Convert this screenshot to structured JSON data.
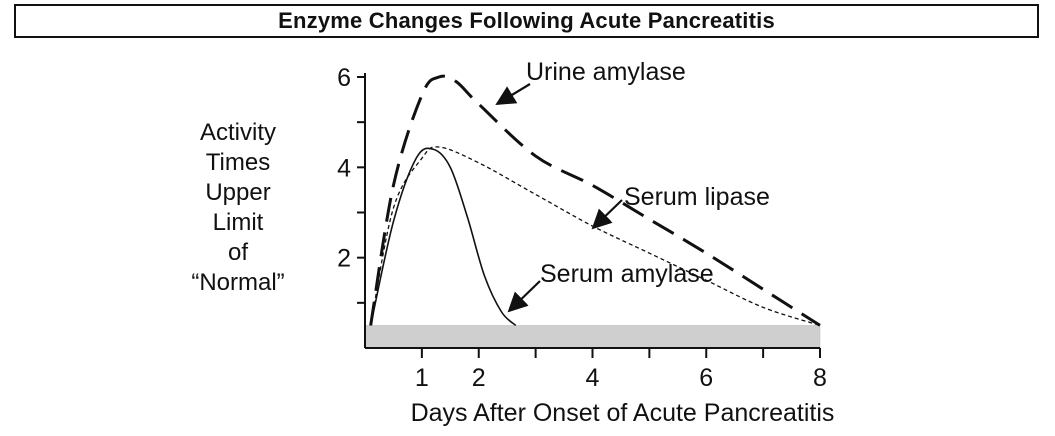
{
  "chart_data": {
    "type": "line",
    "title": "Enzyme Changes Following Acute Pancreatitis",
    "xlabel": "Days After Onset of Acute Pancreatitis",
    "ylabel": "Activity\nTimes\nUpper\nLimit\nof\n“Normal”",
    "xlim": [
      0,
      8
    ],
    "ylim": [
      0,
      6
    ],
    "x_ticks": [
      1,
      2,
      4,
      6,
      8
    ],
    "y_ticks": [
      2,
      4,
      6
    ],
    "normal_band": [
      0,
      0.5
    ],
    "grid": false,
    "legend": "none",
    "series": [
      {
        "name": "Urine amylase",
        "style": "long-dash",
        "x": [
          0.1,
          0.5,
          1.0,
          1.3,
          1.6,
          2.0,
          3.0,
          4.0,
          5.0,
          6.0,
          7.0,
          8.0
        ],
        "y": [
          0.5,
          3.6,
          5.6,
          6.0,
          5.9,
          5.4,
          4.25,
          3.6,
          2.85,
          2.1,
          1.3,
          0.5
        ]
      },
      {
        "name": "Serum lipase",
        "style": "short-dash",
        "x": [
          0.1,
          0.5,
          1.0,
          1.3,
          2.0,
          3.0,
          4.0,
          5.0,
          6.0,
          7.0,
          8.0
        ],
        "y": [
          0.5,
          3.1,
          4.2,
          4.45,
          4.1,
          3.4,
          2.7,
          2.1,
          1.5,
          0.9,
          0.5
        ]
      },
      {
        "name": "Serum amylase",
        "style": "solid",
        "x": [
          0.1,
          0.5,
          0.9,
          1.2,
          1.5,
          1.8,
          2.1,
          2.4,
          2.65
        ],
        "y": [
          0.5,
          2.8,
          4.2,
          4.4,
          4.0,
          2.9,
          1.6,
          0.8,
          0.5
        ]
      }
    ],
    "annotations": [
      {
        "text": "Urine amylase"
      },
      {
        "text": "Serum lipase"
      },
      {
        "text": "Serum amylase"
      }
    ]
  }
}
